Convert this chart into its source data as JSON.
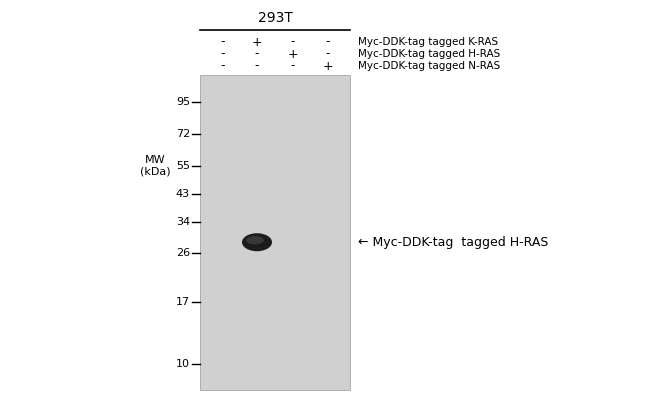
{
  "title": "293T",
  "background_color": "#ffffff",
  "gel_color": "#d0d0d0",
  "mw_label": "MW\n(kDa)",
  "mw_markers": [
    95,
    72,
    55,
    43,
    34,
    26,
    17,
    10
  ],
  "lane_labels_row1": [
    "-",
    "+",
    "-",
    "-"
  ],
  "lane_labels_row2": [
    "-",
    "-",
    "+",
    "-"
  ],
  "lane_labels_row3": [
    "-",
    "-",
    "-",
    "+"
  ],
  "row_labels": [
    "Myc-DDK-tag tagged K-RAS",
    "Myc-DDK-tag tagged H-RAS",
    "Myc-DDK-tag tagged N-RAS"
  ],
  "band_annotation": "← Myc-DDK-tag  tagged H-RAS"
}
